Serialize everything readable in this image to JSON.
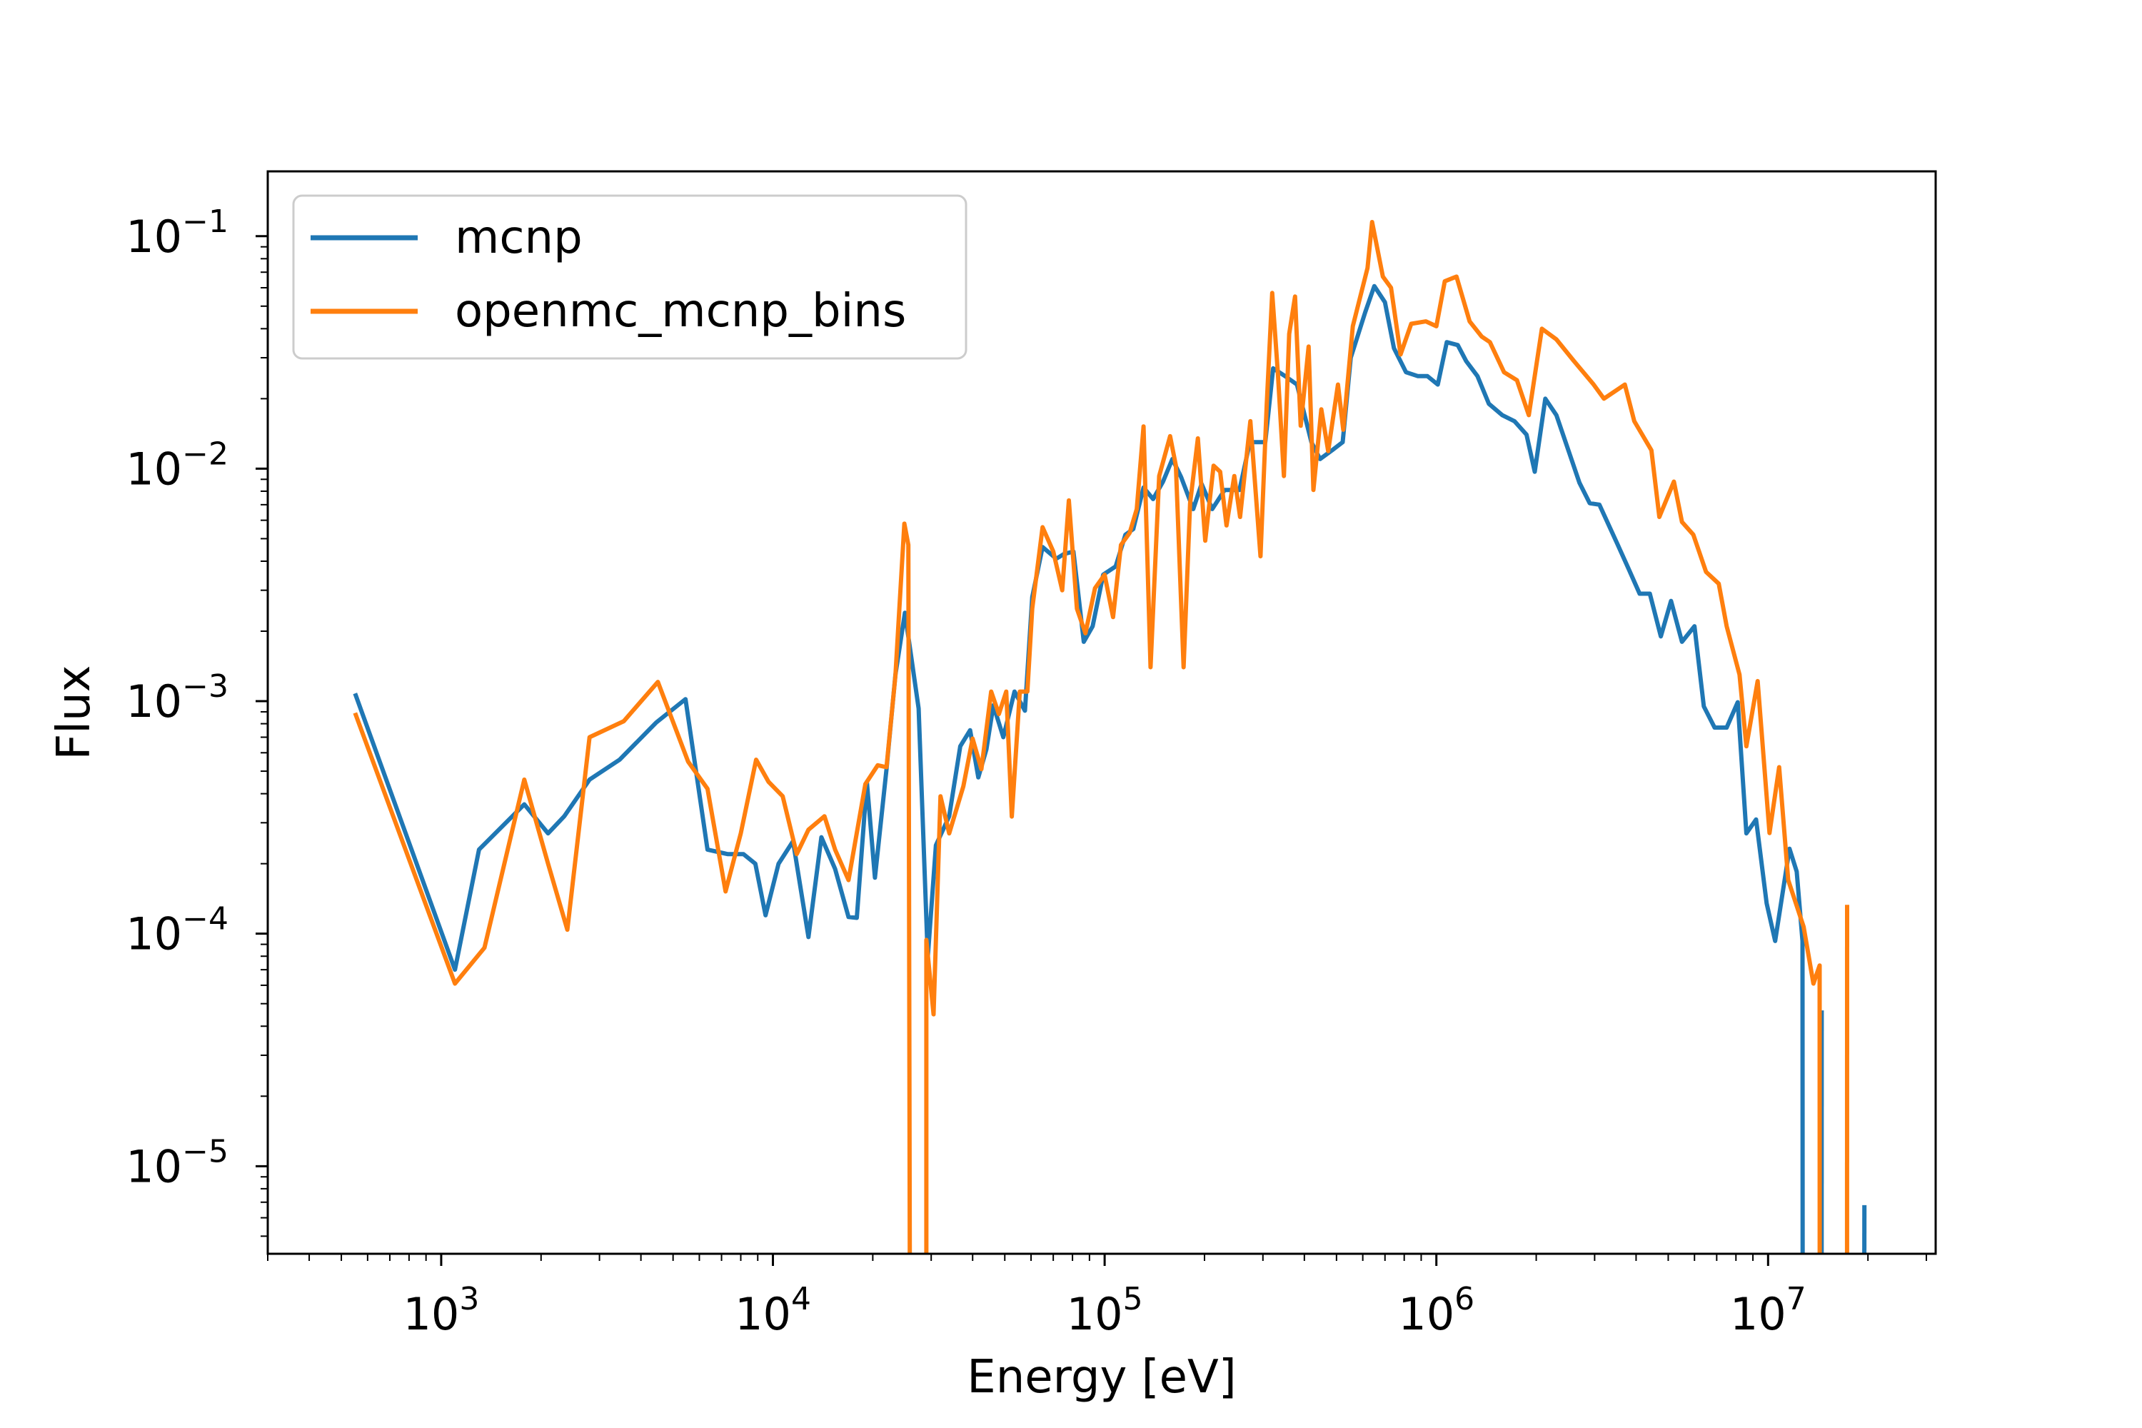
{
  "chart_data": {
    "type": "line",
    "xlabel": "Energy [eV]",
    "ylabel": "Flux",
    "xscale": "log",
    "yscale": "log",
    "xlim": [
      300,
      32000000
    ],
    "ylim": [
      4.2e-06,
      0.19
    ],
    "grid": false,
    "legend_position": "top-left",
    "x_ticks": [
      {
        "base": "10",
        "exp": "3",
        "value": 1000
      },
      {
        "base": "10",
        "exp": "4",
        "value": 10000
      },
      {
        "base": "10",
        "exp": "5",
        "value": 100000
      },
      {
        "base": "10",
        "exp": "6",
        "value": 1000000
      },
      {
        "base": "10",
        "exp": "7",
        "value": 10000000
      }
    ],
    "y_ticks": [
      {
        "base": "10",
        "exp": "−1",
        "value": 0.1
      },
      {
        "base": "10",
        "exp": "−2",
        "value": 0.01
      },
      {
        "base": "10",
        "exp": "−3",
        "value": 0.001
      },
      {
        "base": "10",
        "exp": "−4",
        "value": 0.0001
      },
      {
        "base": "10",
        "exp": "−5",
        "value": 1e-05
      }
    ],
    "series": [
      {
        "name": "mcnp",
        "color": "#1f77b4",
        "points": [
          [
            550,
            0.00108
          ],
          [
            1100,
            7e-05
          ],
          [
            1300,
            0.00023
          ],
          [
            1780,
            0.00036
          ],
          [
            2100,
            0.00027
          ],
          [
            2350,
            0.00032
          ],
          [
            2800,
            0.00046
          ],
          [
            3450,
            0.00056
          ],
          [
            4450,
            0.00081
          ],
          [
            5450,
            0.00102
          ],
          [
            6350,
            0.00023
          ],
          [
            7300,
            0.00022
          ],
          [
            8150,
            0.00022
          ],
          [
            8850,
            0.0002
          ],
          [
            9500,
            0.00012
          ],
          [
            10400,
            0.0002
          ],
          [
            11500,
            0.00025
          ],
          [
            12800,
            9.67e-05
          ],
          [
            14000,
            0.00026
          ],
          [
            15400,
            0.00019
          ],
          [
            16900,
            0.000118
          ],
          [
            17900,
            0.000117
          ],
          [
            19200,
            0.00045
          ],
          [
            20300,
            0.000174
          ],
          [
            22000,
            0.00051
          ],
          [
            23400,
            0.0013
          ],
          [
            25000,
            0.0024
          ],
          [
            27500,
            0.00093
          ],
          [
            29300,
            7.9e-05
          ],
          [
            31000,
            0.00024
          ],
          [
            34000,
            0.00032
          ],
          [
            36700,
            0.00064
          ],
          [
            39300,
            0.00075
          ],
          [
            41600,
            0.00047
          ],
          [
            44000,
            0.00062
          ],
          [
            46200,
            0.00096
          ],
          [
            49500,
            0.0007
          ],
          [
            53500,
            0.0011
          ],
          [
            57500,
            0.00091
          ],
          [
            60500,
            0.0028
          ],
          [
            65000,
            0.0046
          ],
          [
            71500,
            0.0041
          ],
          [
            75500,
            0.0043
          ],
          [
            80500,
            0.0044
          ],
          [
            86500,
            0.0018
          ],
          [
            92000,
            0.0021
          ],
          [
            99000,
            0.0035
          ],
          [
            108000,
            0.0038
          ],
          [
            115500,
            0.0052
          ],
          [
            122000,
            0.0055
          ],
          [
            131000,
            0.0083
          ],
          [
            140000,
            0.0074
          ],
          [
            150000,
            0.0088
          ],
          [
            160000,
            0.011
          ],
          [
            170000,
            0.0092
          ],
          [
            185000,
            0.0067
          ],
          [
            196000,
            0.0086
          ],
          [
            211000,
            0.0067
          ],
          [
            230000,
            0.0081
          ],
          [
            255000,
            0.0081
          ],
          [
            274000,
            0.013
          ],
          [
            305000,
            0.013
          ],
          [
            322000,
            0.027
          ],
          [
            350000,
            0.025
          ],
          [
            380000,
            0.023
          ],
          [
            420000,
            0.013
          ],
          [
            446000,
            0.011
          ],
          [
            485000,
            0.012
          ],
          [
            522000,
            0.013
          ],
          [
            552000,
            0.03
          ],
          [
            610000,
            0.047
          ],
          [
            650000,
            0.061
          ],
          [
            700000,
            0.052
          ],
          [
            745000,
            0.033
          ],
          [
            810000,
            0.026
          ],
          [
            880000,
            0.025
          ],
          [
            940000,
            0.025
          ],
          [
            1010000,
            0.023
          ],
          [
            1075000,
            0.035
          ],
          [
            1160000,
            0.034
          ],
          [
            1230000,
            0.029
          ],
          [
            1330000,
            0.025
          ],
          [
            1440000,
            0.019
          ],
          [
            1580000,
            0.017
          ],
          [
            1720000,
            0.016
          ],
          [
            1870000,
            0.014
          ],
          [
            1980000,
            0.0097
          ],
          [
            2130000,
            0.02
          ],
          [
            2300000,
            0.017
          ],
          [
            2500000,
            0.012
          ],
          [
            2700000,
            0.0087
          ],
          [
            2900000,
            0.0071
          ],
          [
            3100000,
            0.007
          ],
          [
            3500000,
            0.0048
          ],
          [
            3800000,
            0.0037
          ],
          [
            4100000,
            0.0029
          ],
          [
            4400000,
            0.0029
          ],
          [
            4750000,
            0.0019
          ],
          [
            5100000,
            0.0027
          ],
          [
            5500000,
            0.0018
          ],
          [
            6000000,
            0.0021
          ],
          [
            6400000,
            0.00095
          ],
          [
            6900000,
            0.00077
          ],
          [
            7500000,
            0.00077
          ],
          [
            8100000,
            0.00099
          ],
          [
            8600000,
            0.00027
          ],
          [
            9200000,
            0.00031
          ],
          [
            9900000,
            0.000135
          ],
          [
            10500000,
            9.3e-05
          ],
          [
            11600000,
            0.000232
          ],
          [
            12200000,
            0.000185
          ],
          [
            12700000,
            9.3e-05
          ],
          [
            12710000,
            4.2e-06
          ]
        ],
        "segments": [
          [
            [
              14500000,
              4.2e-06
            ],
            [
              14510000,
              4.68e-05
            ]
          ],
          [
            [
              19500000,
              4.2e-06
            ],
            [
              19510000,
              6.8e-06
            ]
          ]
        ]
      },
      {
        "name": "openmc_mcnp_bins",
        "color": "#ff7f0e",
        "points": [
          [
            550,
            0.00089
          ],
          [
            1100,
            6.1e-05
          ],
          [
            1350,
            8.7e-05
          ],
          [
            1780,
            0.00046
          ],
          [
            2100,
            0.0002
          ],
          [
            2400,
            0.000104
          ],
          [
            2800,
            0.0007
          ],
          [
            3550,
            0.00082
          ],
          [
            4500,
            0.00121
          ],
          [
            5550,
            0.00055
          ],
          [
            6350,
            0.00042
          ],
          [
            7200,
            0.000152
          ],
          [
            8000,
            0.00027
          ],
          [
            8900,
            0.00056
          ],
          [
            9700,
            0.00045
          ],
          [
            10700,
            0.00039
          ],
          [
            11800,
            0.00022
          ],
          [
            12800,
            0.00028
          ],
          [
            14300,
            0.00032
          ],
          [
            15400,
            0.00023
          ],
          [
            16900,
            0.00017
          ],
          [
            19000,
            0.00044
          ],
          [
            20700,
            0.00053
          ],
          [
            22000,
            0.00052
          ],
          [
            23400,
            0.00129
          ],
          [
            24900,
            0.0058
          ],
          [
            25600,
            0.0047
          ],
          [
            25850,
            4.2e-06
          ]
        ],
        "segments": [
          [
            [
              29000,
              4.2e-06
            ],
            [
              29010,
              9.4e-05
            ],
            [
              30500,
              4.5e-05
            ],
            [
              32000,
              0.00039
            ],
            [
              34000,
              0.00027
            ],
            [
              37500,
              0.00043
            ],
            [
              40000,
              0.00069
            ],
            [
              42500,
              0.00051
            ],
            [
              45500,
              0.0011
            ],
            [
              48000,
              0.00088
            ],
            [
              50500,
              0.0011
            ],
            [
              52500,
              0.000319
            ],
            [
              55500,
              0.0011
            ],
            [
              58500,
              0.0011
            ],
            [
              60500,
              0.0025
            ],
            [
              65000,
              0.0056
            ],
            [
              70000,
              0.0044
            ],
            [
              74500,
              0.003
            ],
            [
              78000,
              0.0073
            ],
            [
              82500,
              0.0025
            ],
            [
              87500,
              0.00196
            ],
            [
              93500,
              0.00306
            ],
            [
              100000,
              0.0035
            ],
            [
              106000,
              0.0023
            ],
            [
              112000,
              0.0047
            ],
            [
              119000,
              0.0053
            ],
            [
              125000,
              0.0067
            ],
            [
              131000,
              0.0152
            ],
            [
              137500,
              0.0014
            ],
            [
              146000,
              0.0093
            ],
            [
              157500,
              0.0138
            ],
            [
              164000,
              0.0103
            ],
            [
              173000,
              0.0014
            ],
            [
              181000,
              0.0071
            ],
            [
              191000,
              0.0135
            ],
            [
              201000,
              0.0049
            ],
            [
              213000,
              0.0103
            ],
            [
              223000,
              0.0097
            ],
            [
              233000,
              0.0057
            ],
            [
              246000,
              0.0093
            ],
            [
              256000,
              0.0062
            ],
            [
              275000,
              0.016
            ],
            [
              295000,
              0.0042
            ],
            [
              308000,
              0.0188
            ],
            [
              320000,
              0.057
            ],
            [
              333000,
              0.0256
            ],
            [
              347000,
              0.0093
            ],
            [
              360000,
              0.038
            ],
            [
              375000,
              0.055
            ],
            [
              390000,
              0.0153
            ],
            [
              412000,
              0.0335
            ],
            [
              426000,
              0.0081
            ],
            [
              450000,
              0.018
            ],
            [
              472000,
              0.0119
            ],
            [
              505000,
              0.023
            ],
            [
              524000,
              0.0147
            ],
            [
              560000,
              0.041
            ],
            [
              620000,
              0.073
            ],
            [
              640000,
              0.115
            ],
            [
              690000,
              0.067
            ],
            [
              730000,
              0.06
            ],
            [
              780000,
              0.031
            ],
            [
              840000,
              0.042
            ],
            [
              930000,
              0.043
            ],
            [
              1000000,
              0.041
            ],
            [
              1060000,
              0.064
            ],
            [
              1150000,
              0.067
            ],
            [
              1260000,
              0.043
            ],
            [
              1370000,
              0.037
            ],
            [
              1450000,
              0.035
            ],
            [
              1600000,
              0.026
            ],
            [
              1750000,
              0.024
            ],
            [
              1900000,
              0.017
            ],
            [
              2080000,
              0.04
            ],
            [
              2300000,
              0.036
            ],
            [
              2600000,
              0.029
            ],
            [
              2980000,
              0.023
            ],
            [
              3200000,
              0.02
            ],
            [
              3700000,
              0.023
            ],
            [
              3950000,
              0.016
            ],
            [
              4450000,
              0.012
            ],
            [
              4700000,
              0.0062
            ],
            [
              5200000,
              0.0088
            ],
            [
              5500000,
              0.0059
            ],
            [
              5950000,
              0.0052
            ],
            [
              6500000,
              0.0036
            ],
            [
              7100000,
              0.0032
            ],
            [
              7500000,
              0.0021
            ],
            [
              8200000,
              0.0013
            ],
            [
              8600000,
              0.00064
            ],
            [
              9300000,
              0.00122
            ],
            [
              10100000,
              0.000271
            ],
            [
              10800000,
              0.00052
            ],
            [
              11500000,
              0.00017
            ],
            [
              12800000,
              0.000107
            ],
            [
              13700000,
              6.1e-05
            ],
            [
              14300000,
              7.3e-05
            ],
            [
              14310000,
              4.2e-06
            ]
          ],
          [
            [
              17300000,
              4.2e-06
            ],
            [
              17310000,
              0.000133
            ]
          ]
        ]
      }
    ]
  }
}
